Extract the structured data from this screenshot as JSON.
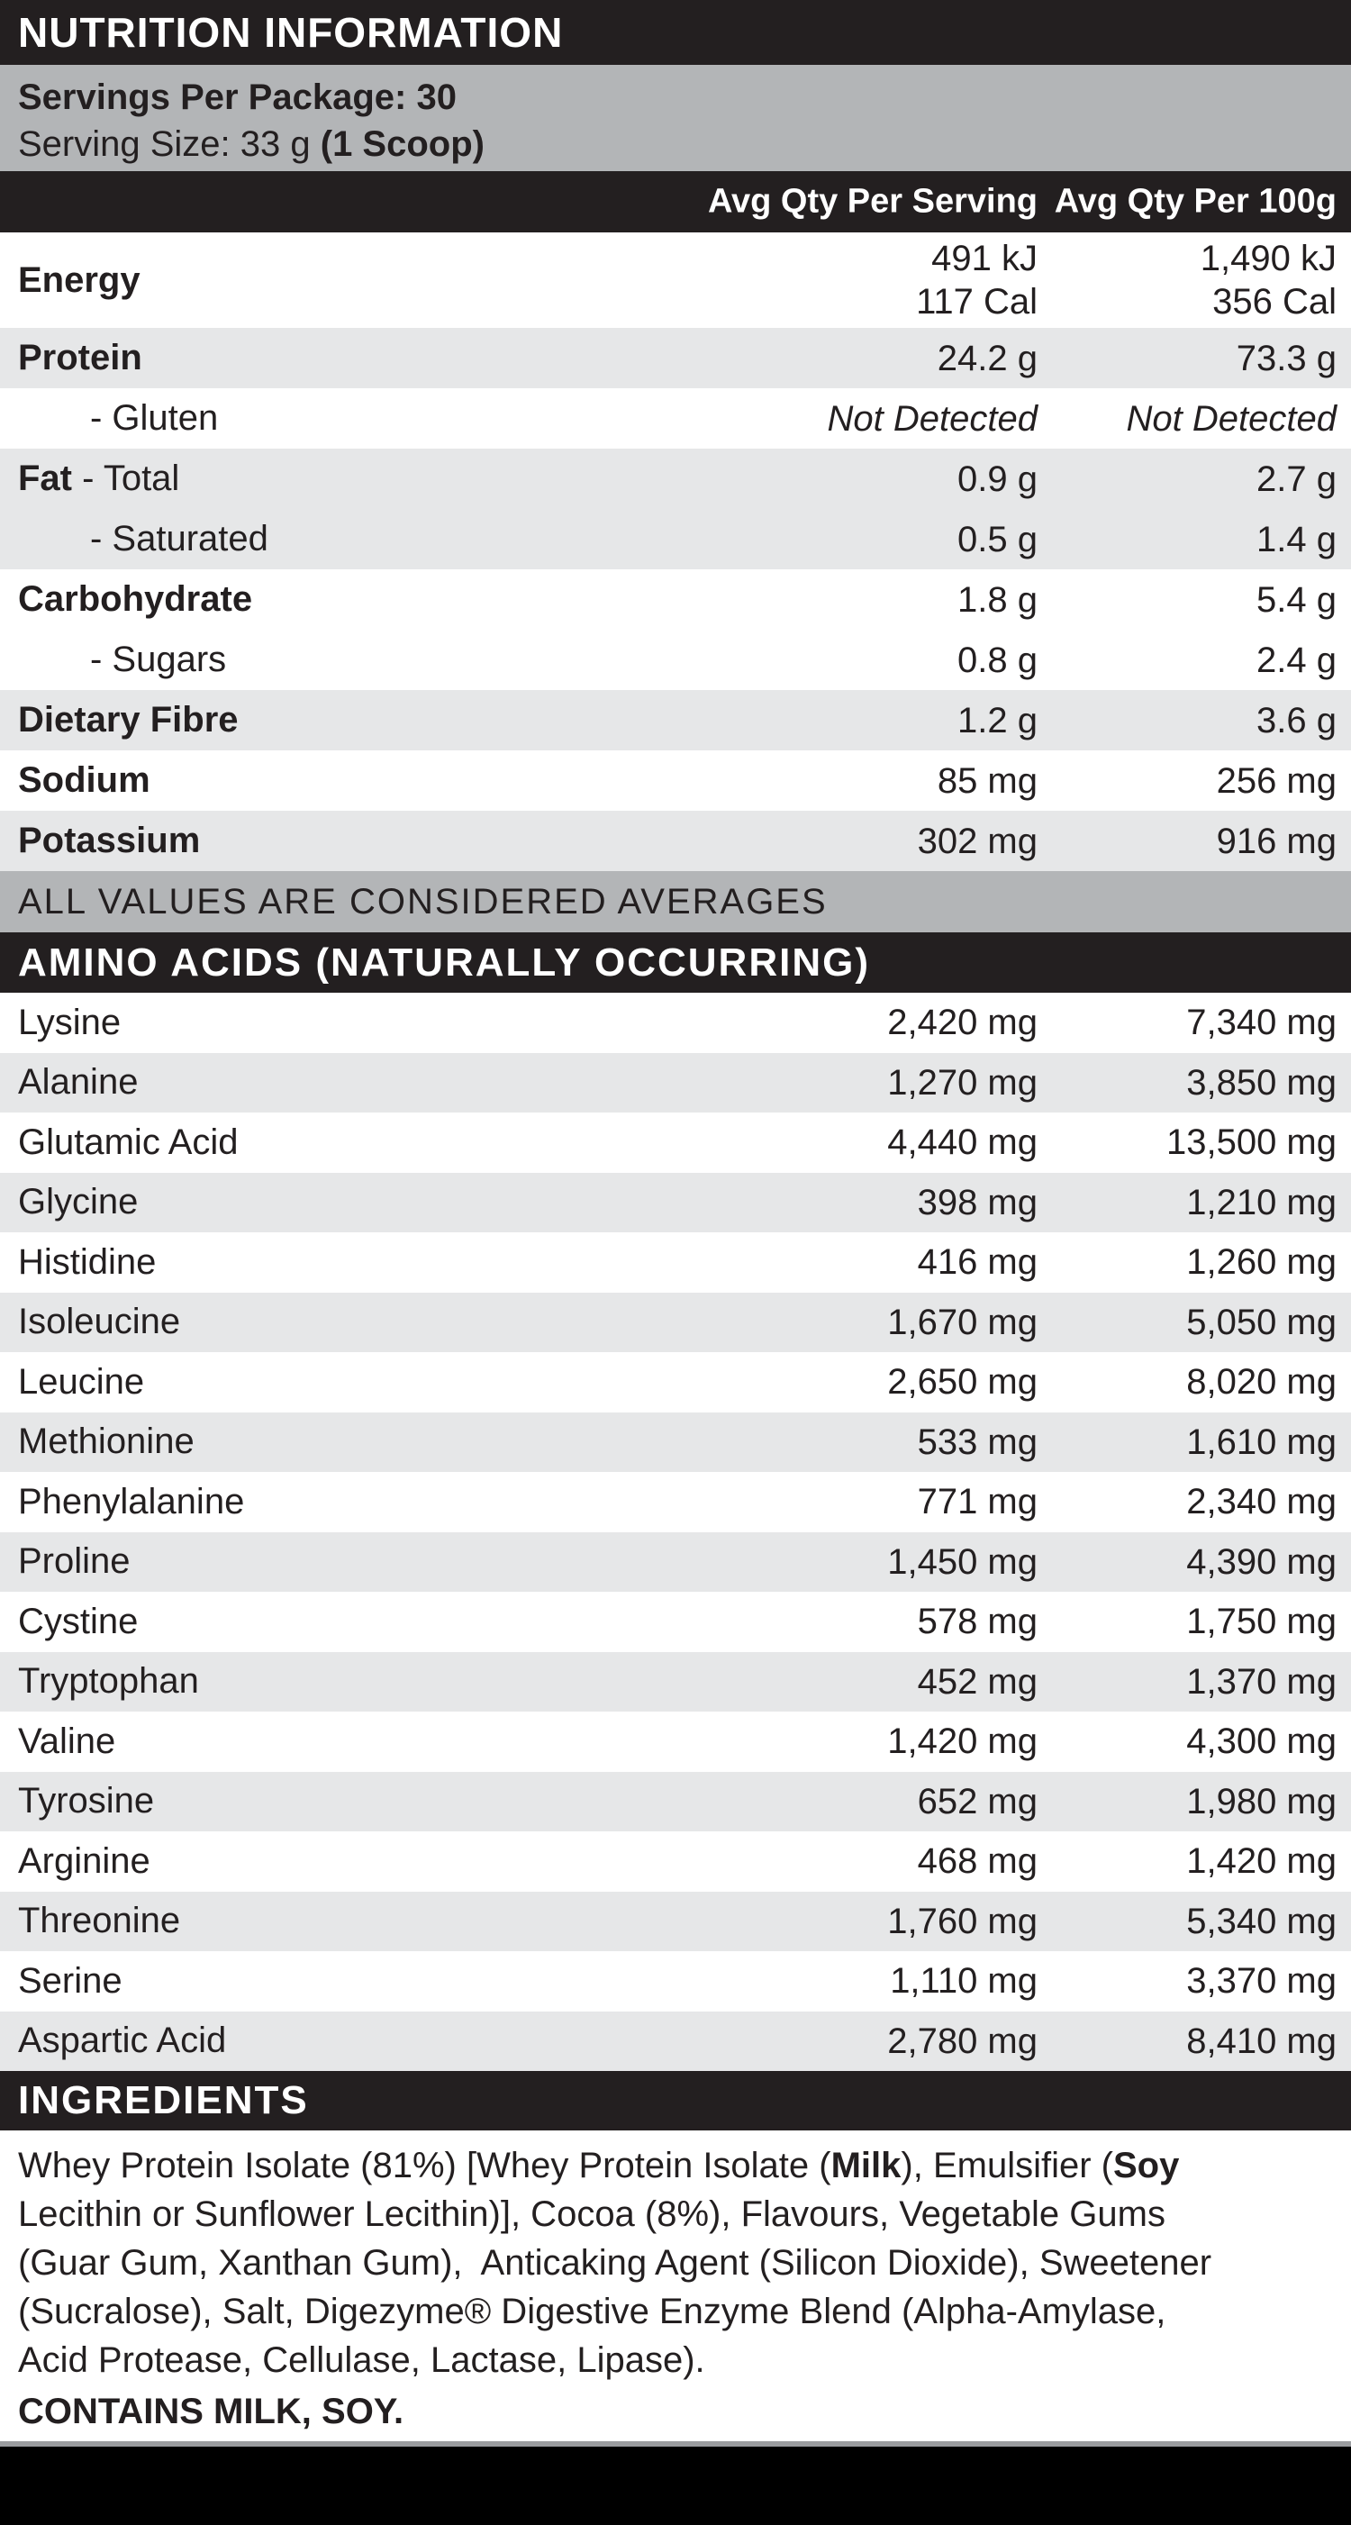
{
  "header": {
    "title": "NUTRITION INFORMATION"
  },
  "serving": {
    "line1": "Servings Per Package: 30",
    "line2_regular": "Serving Size: 33 g ",
    "line2_bold": "(1 Scoop)"
  },
  "columns": {
    "per_serving": "Avg Qty Per Serving",
    "per_100g": "Avg Qty Per 100g"
  },
  "nutrients": [
    {
      "label_bold": "Energy",
      "label_reg": "",
      "indent": false,
      "per_serving": [
        "491 kJ",
        "117 Cal"
      ],
      "per_100g": [
        "1,490 kJ",
        "356 Cal"
      ],
      "shade": "white",
      "italic": false
    },
    {
      "label_bold": "Protein",
      "label_reg": "",
      "indent": false,
      "per_serving": [
        "24.2 g"
      ],
      "per_100g": [
        "73.3 g"
      ],
      "shade": "gray",
      "italic": false
    },
    {
      "label_bold": "",
      "label_reg": "- Gluten",
      "indent": true,
      "per_serving": [
        "Not Detected"
      ],
      "per_100g": [
        "Not Detected"
      ],
      "shade": "white",
      "italic": true
    },
    {
      "label_bold": "Fat",
      "label_reg": " - Total",
      "indent": false,
      "per_serving": [
        "0.9 g"
      ],
      "per_100g": [
        "2.7 g"
      ],
      "shade": "gray",
      "italic": false
    },
    {
      "label_bold": "",
      "label_reg": "- Saturated",
      "indent": true,
      "per_serving": [
        "0.5 g"
      ],
      "per_100g": [
        "1.4 g"
      ],
      "shade": "gray",
      "italic": false
    },
    {
      "label_bold": "Carbohydrate",
      "label_reg": "",
      "indent": false,
      "per_serving": [
        "1.8 g"
      ],
      "per_100g": [
        "5.4 g"
      ],
      "shade": "white",
      "italic": false
    },
    {
      "label_bold": "",
      "label_reg": "- Sugars",
      "indent": true,
      "per_serving": [
        "0.8 g"
      ],
      "per_100g": [
        "2.4 g"
      ],
      "shade": "white",
      "italic": false
    },
    {
      "label_bold": "Dietary Fibre",
      "label_reg": "",
      "indent": false,
      "per_serving": [
        "1.2 g"
      ],
      "per_100g": [
        "3.6 g"
      ],
      "shade": "gray",
      "italic": false
    },
    {
      "label_bold": "Sodium",
      "label_reg": "",
      "indent": false,
      "per_serving": [
        "85 mg"
      ],
      "per_100g": [
        "256 mg"
      ],
      "shade": "white",
      "italic": false
    },
    {
      "label_bold": "Potassium",
      "label_reg": "",
      "indent": false,
      "per_serving": [
        "302 mg"
      ],
      "per_100g": [
        "916 mg"
      ],
      "shade": "gray",
      "italic": false
    }
  ],
  "averages_note": "ALL VALUES ARE CONSIDERED AVERAGES",
  "amino_header": "AMINO ACIDS (NATURALLY OCCURRING)",
  "amino_acids": [
    {
      "name": "Lysine",
      "per_serving": "2,420 mg",
      "per_100g": "7,340 mg"
    },
    {
      "name": "Alanine",
      "per_serving": "1,270 mg",
      "per_100g": "3,850 mg"
    },
    {
      "name": "Glutamic Acid",
      "per_serving": "4,440 mg",
      "per_100g": "13,500 mg"
    },
    {
      "name": "Glycine",
      "per_serving": "398 mg",
      "per_100g": "1,210 mg"
    },
    {
      "name": "Histidine",
      "per_serving": "416 mg",
      "per_100g": "1,260 mg"
    },
    {
      "name": "Isoleucine",
      "per_serving": "1,670 mg",
      "per_100g": "5,050 mg"
    },
    {
      "name": "Leucine",
      "per_serving": "2,650 mg",
      "per_100g": "8,020 mg"
    },
    {
      "name": "Methionine",
      "per_serving": "533 mg",
      "per_100g": "1,610 mg"
    },
    {
      "name": "Phenylalanine",
      "per_serving": "771 mg",
      "per_100g": "2,340 mg"
    },
    {
      "name": "Proline",
      "per_serving": "1,450 mg",
      "per_100g": "4,390 mg"
    },
    {
      "name": "Cystine",
      "per_serving": "578 mg",
      "per_100g": "1,750 mg"
    },
    {
      "name": "Tryptophan",
      "per_serving": "452 mg",
      "per_100g": "1,370 mg"
    },
    {
      "name": "Valine",
      "per_serving": "1,420 mg",
      "per_100g": "4,300 mg"
    },
    {
      "name": "Tyrosine",
      "per_serving": "652 mg",
      "per_100g": "1,980 mg"
    },
    {
      "name": "Arginine",
      "per_serving": "468 mg",
      "per_100g": "1,420 mg"
    },
    {
      "name": "Threonine",
      "per_serving": "1,760 mg",
      "per_100g": "5,340 mg"
    },
    {
      "name": "Serine",
      "per_serving": "1,110 mg",
      "per_100g": "3,370 mg"
    },
    {
      "name": "Aspartic Acid",
      "per_serving": "2,780 mg",
      "per_100g": "8,410 mg"
    }
  ],
  "ingredients_header": "INGREDIENTS",
  "ingredients_lines": [
    [
      {
        "t": "Whey Protein Isolate (81%) [Whey Protein Isolate (",
        "b": false
      },
      {
        "t": "Milk",
        "b": true
      },
      {
        "t": "), Emulsifier (",
        "b": false
      },
      {
        "t": "Soy",
        "b": true
      }
    ],
    [
      {
        "t": "Lecithin or Sunflower Lecithin)], Cocoa (8%), Flavours, Vegetable Gums",
        "b": false
      }
    ],
    [
      {
        "t": "(Guar Gum, Xanthan Gum),  Anticaking Agent (Silicon Dioxide), Sweetener",
        "b": false
      }
    ],
    [
      {
        "t": "(Sucralose), Salt, Digezyme® Digestive Enzyme Blend (Alpha-Amylase,",
        "b": false
      }
    ],
    [
      {
        "t": "Acid Protease, Cellulase, Lactase, Lipase).",
        "b": false
      }
    ]
  ],
  "contains_note": "CONTAINS MILK, SOY.",
  "colors": {
    "bar_black": "#231f20",
    "footer_black": "#000000",
    "row_gray": "#e6e7e8",
    "band_gray": "#b3b5b7",
    "text": "#231f20",
    "white": "#ffffff"
  }
}
